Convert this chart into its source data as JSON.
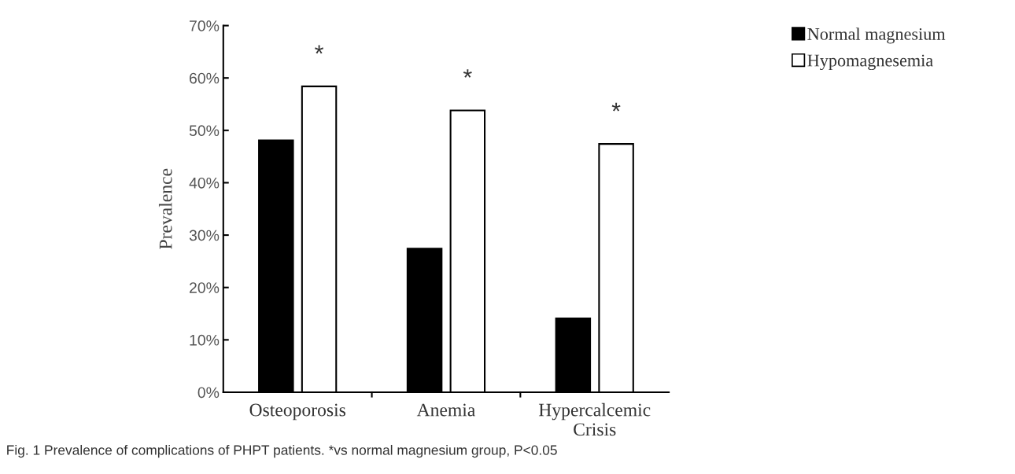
{
  "chart_data": {
    "type": "bar",
    "categories": [
      "Osteoporosis",
      "Anemia",
      "Hypercalcemic\nCrisis"
    ],
    "series": [
      {
        "name": "Normal magnesium",
        "color": "#000000",
        "values": [
          48.1,
          27.4,
          14.1
        ]
      },
      {
        "name": "Hypomagnesemia",
        "color": "#ffffff",
        "values": [
          58.4,
          53.8,
          47.4
        ]
      }
    ],
    "ylabel": "Prevalence",
    "ylim": [
      0,
      70
    ],
    "yticks": [
      {
        "value": 0,
        "label": "0%"
      },
      {
        "value": 10,
        "label": "10%"
      },
      {
        "value": 20,
        "label": "20%"
      },
      {
        "value": 30,
        "label": "30%"
      },
      {
        "value": 40,
        "label": "40%"
      },
      {
        "value": 50,
        "label": "50%"
      },
      {
        "value": 60,
        "label": "60%"
      },
      {
        "value": 70,
        "label": "70%"
      }
    ],
    "annotations": [
      "*",
      "*",
      "*",
      "Fig. 1 Prevalence of complications of PHPT patients. *vs normal magnesium group, P<0.05"
    ],
    "legend": "top right",
    "grid": false
  }
}
